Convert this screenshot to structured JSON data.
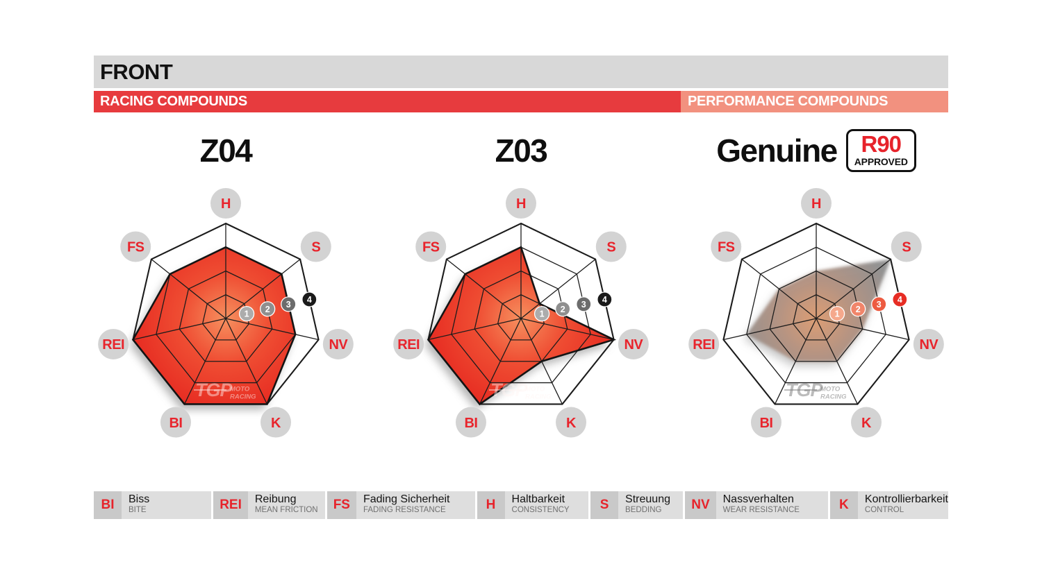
{
  "header": {
    "title": "FRONT",
    "racing_label": "RACING COMPOUNDS",
    "performance_label": "PERFORMANCE COMPOUNDS",
    "title_bar_bg": "#d8d8d8",
    "racing_bg": "#e73b3e",
    "performance_bg": "#f2917f"
  },
  "charts": [
    {
      "style": "racing"
    },
    {
      "style": "racing"
    },
    {
      "style": "performance",
      "approval_badge": {
        "line1": "R90",
        "line2": "APPROVED"
      }
    }
  ],
  "chart_data": [
    {
      "type": "radar",
      "title": "Z04",
      "axes": [
        "H",
        "S",
        "NV",
        "K",
        "BI",
        "REI",
        "FS"
      ],
      "range": [
        0,
        4
      ],
      "values": [
        3,
        3,
        3,
        4,
        4,
        4,
        3
      ],
      "rings": [
        1,
        2,
        3,
        4
      ],
      "legend_position": "none",
      "grid": true
    },
    {
      "type": "radar",
      "title": "Z03",
      "axes": [
        "H",
        "S",
        "NV",
        "K",
        "BI",
        "REI",
        "FS"
      ],
      "range": [
        0,
        4
      ],
      "values": [
        3,
        1,
        4,
        2,
        4,
        4,
        3
      ],
      "rings": [
        1,
        2,
        3,
        4
      ],
      "legend_position": "none",
      "grid": true
    },
    {
      "type": "radar",
      "title": "Genuine",
      "axes": [
        "H",
        "S",
        "NV",
        "K",
        "BI",
        "REI",
        "FS"
      ],
      "range": [
        0,
        4
      ],
      "values": [
        2,
        4,
        2,
        2,
        2,
        3,
        2
      ],
      "rings": [
        1,
        2,
        3,
        4
      ],
      "legend_position": "none",
      "grid": true
    }
  ],
  "scale_badges": [
    "1",
    "2",
    "3",
    "4"
  ],
  "watermark": {
    "logo": "TGP",
    "line1": "MOTO",
    "line2": "RACING"
  },
  "colors": {
    "axis_label_circle": "#d3d3d3",
    "axis_label_text": "#e8242c",
    "grid_line": "#1c1c1c",
    "racing_fill_center": "#f6905f",
    "racing_fill_mid": "#ef4e33",
    "racing_fill_edge": "#e62a21",
    "performance_fill_center": "#dd9b70",
    "performance_fill_mid": "#b4917f",
    "performance_fill_edge": "#8e8e8e",
    "racing_badges": [
      "#acacac",
      "#8f8f8f",
      "#6c6c6c",
      "#1a1a1a"
    ],
    "performance_badges": [
      "#f5a88c",
      "#f1856a",
      "#ed5b41",
      "#e72d24"
    ]
  },
  "legend": {
    "items": [
      {
        "abbr": "BI",
        "german": "Biss",
        "english": "BITE"
      },
      {
        "abbr": "REI",
        "german": "Reibung",
        "english": "MEAN FRICTION"
      },
      {
        "abbr": "FS",
        "german": "Fading Sicherheit",
        "english": "FADING RESISTANCE"
      },
      {
        "abbr": "H",
        "german": "Haltbarkeit",
        "english": "CONSISTENCY"
      },
      {
        "abbr": "S",
        "german": "Streuung",
        "english": "BEDDING"
      },
      {
        "abbr": "NV",
        "german": "Nassverhalten",
        "english": "WEAR RESISTANCE"
      },
      {
        "abbr": "K",
        "german": "Kontrollierbarkeit",
        "english": "CONTROL"
      }
    ]
  }
}
